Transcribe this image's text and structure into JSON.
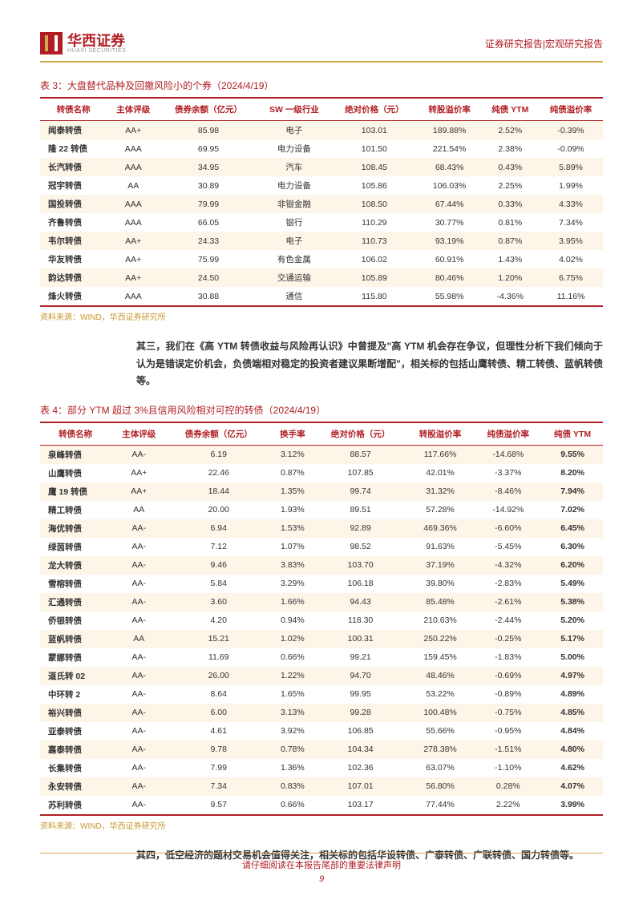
{
  "header": {
    "logo_cn": "华西证券",
    "logo_en": "HUAXI SECURITIES",
    "right": "证券研究报告|宏观研究报告"
  },
  "table3": {
    "title": "表 3：大盘替代品种及回撤风险小的个券（2024/4/19）",
    "columns": [
      "转债名称",
      "主体评级",
      "债券余额（亿元）",
      "SW 一级行业",
      "绝对价格（元）",
      "转股溢价率",
      "纯债 YTM",
      "纯债溢价率"
    ],
    "rows": [
      [
        "闻泰转债",
        "AA+",
        "85.98",
        "电子",
        "103.01",
        "189.88%",
        "2.52%",
        "-0.39%"
      ],
      [
        "隆 22 转债",
        "AAA",
        "69.95",
        "电力设备",
        "101.50",
        "221.54%",
        "2.38%",
        "-0.09%"
      ],
      [
        "长汽转债",
        "AAA",
        "34.95",
        "汽车",
        "108.45",
        "68.43%",
        "0.43%",
        "5.89%"
      ],
      [
        "冠宇转债",
        "AA",
        "30.89",
        "电力设备",
        "105.86",
        "106.03%",
        "2.25%",
        "1.99%"
      ],
      [
        "国投转债",
        "AAA",
        "79.99",
        "非银金融",
        "108.50",
        "67.44%",
        "0.33%",
        "4.33%"
      ],
      [
        "齐鲁转债",
        "AAA",
        "66.05",
        "银行",
        "110.29",
        "30.77%",
        "0.81%",
        "7.34%"
      ],
      [
        "韦尔转债",
        "AA+",
        "24.33",
        "电子",
        "110.73",
        "93.19%",
        "0.87%",
        "3.95%"
      ],
      [
        "华友转债",
        "AA+",
        "75.99",
        "有色金属",
        "106.02",
        "60.91%",
        "1.43%",
        "4.02%"
      ],
      [
        "韵达转债",
        "AA+",
        "24.50",
        "交通运输",
        "105.89",
        "80.46%",
        "1.20%",
        "6.75%"
      ],
      [
        "烽火转债",
        "AAA",
        "30.88",
        "通信",
        "115.80",
        "55.98%",
        "-4.36%",
        "11.16%"
      ]
    ],
    "source": "资料来源：WIND，华西证券研究所"
  },
  "para1": "其三，我们在《高 YTM 转债收益与风险再认识》中曾提及\"高 YTM 机会存在争议，但理性分析下我们倾向于认为是错误定价机会，负债端相对稳定的投资者建议果断增配\"，相关标的包括山鹰转债、精工转债、蓝帆转债等。",
  "table4": {
    "title": "表 4：部分 YTM 超过 3%且信用风险相对可控的转债（2024/4/19）",
    "columns": [
      "转债名称",
      "主体评级",
      "债券余额（亿元）",
      "换手率",
      "绝对价格（元）",
      "转股溢价率",
      "纯债溢价率",
      "纯债 YTM"
    ],
    "rows": [
      [
        "泉峰转债",
        "AA-",
        "6.19",
        "3.12%",
        "88.57",
        "117.66%",
        "-14.68%",
        "9.55%"
      ],
      [
        "山鹰转债",
        "AA+",
        "22.46",
        "0.87%",
        "107.85",
        "42.01%",
        "-3.37%",
        "8.20%"
      ],
      [
        "鹰 19 转债",
        "AA+",
        "18.44",
        "1.35%",
        "99.74",
        "31.32%",
        "-8.46%",
        "7.94%"
      ],
      [
        "精工转债",
        "AA",
        "20.00",
        "1.93%",
        "89.51",
        "57.28%",
        "-14.92%",
        "7.02%"
      ],
      [
        "海优转债",
        "AA-",
        "6.94",
        "1.53%",
        "92.89",
        "469.36%",
        "-6.60%",
        "6.45%"
      ],
      [
        "绿茵转债",
        "AA-",
        "7.12",
        "1.07%",
        "98.52",
        "91.63%",
        "-5.45%",
        "6.30%"
      ],
      [
        "龙大转债",
        "AA-",
        "9.46",
        "3.83%",
        "103.70",
        "37.19%",
        "-4.32%",
        "6.20%"
      ],
      [
        "雪榕转债",
        "AA-",
        "5.84",
        "3.29%",
        "106.18",
        "39.80%",
        "-2.83%",
        "5.49%"
      ],
      [
        "汇通转债",
        "AA-",
        "3.60",
        "1.66%",
        "94.43",
        "85.48%",
        "-2.61%",
        "5.38%"
      ],
      [
        "侨银转债",
        "AA-",
        "4.20",
        "0.94%",
        "118.30",
        "210.63%",
        "-2.44%",
        "5.20%"
      ],
      [
        "蓝帆转债",
        "AA",
        "15.21",
        "1.02%",
        "100.31",
        "250.22%",
        "-0.25%",
        "5.17%"
      ],
      [
        "蒙娜转债",
        "AA-",
        "11.69",
        "0.66%",
        "99.21",
        "159.45%",
        "-1.83%",
        "5.00%"
      ],
      [
        "道氏转 02",
        "AA-",
        "26.00",
        "1.22%",
        "94.70",
        "48.46%",
        "-0.69%",
        "4.97%"
      ],
      [
        "中环转 2",
        "AA-",
        "8.64",
        "1.65%",
        "99.95",
        "53.22%",
        "-0.89%",
        "4.89%"
      ],
      [
        "裕兴转债",
        "AA-",
        "6.00",
        "3.13%",
        "99.28",
        "100.48%",
        "-0.75%",
        "4.85%"
      ],
      [
        "亚泰转债",
        "AA-",
        "4.61",
        "3.92%",
        "106.85",
        "55.66%",
        "-0.95%",
        "4.84%"
      ],
      [
        "嘉泰转债",
        "AA-",
        "9.78",
        "0.78%",
        "104.34",
        "278.38%",
        "-1.51%",
        "4.80%"
      ],
      [
        "长集转债",
        "AA-",
        "7.99",
        "1.36%",
        "102.36",
        "63.07%",
        "-1.10%",
        "4.62%"
      ],
      [
        "永安转债",
        "AA-",
        "7.34",
        "0.83%",
        "107.01",
        "56.80%",
        "0.28%",
        "4.07%"
      ],
      [
        "苏利转债",
        "AA-",
        "9.57",
        "0.66%",
        "103.17",
        "77.44%",
        "2.22%",
        "3.99%"
      ]
    ],
    "source": "资料来源：WIND，华西证券研究所"
  },
  "para2": "其四，低空经济的题材交易机会值得关注，相关标的包括华设转债、广泰转债、广联转债、国力转债等。",
  "footer": {
    "text": "请仔细阅读在本报告尾部的重要法律声明",
    "page": "9"
  }
}
